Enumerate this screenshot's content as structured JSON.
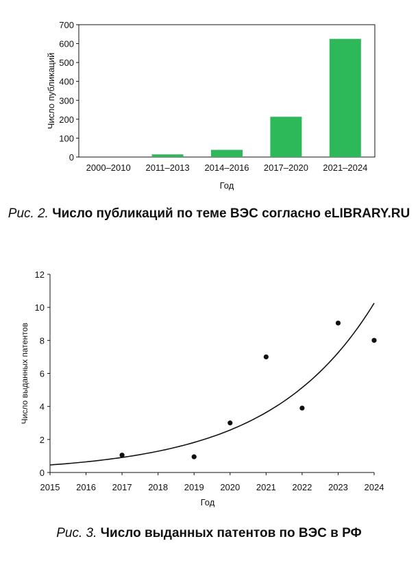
{
  "chart_data": [
    {
      "type": "bar",
      "categories": [
        "2000–2010",
        "2011–2013",
        "2014–2016",
        "2017–2020",
        "2021–2024"
      ],
      "values": [
        0,
        14,
        38,
        213,
        625
      ],
      "xlabel": "Год",
      "ylabel": "Число публикаций",
      "ylim": [
        0,
        700
      ],
      "yticks": [
        0,
        100,
        200,
        300,
        400,
        500,
        600,
        700
      ],
      "bar_color": "#2db85a",
      "grid": false
    },
    {
      "type": "scatter",
      "series": [
        {
          "x": [
            2017,
            2019,
            2020,
            2021,
            2022,
            2023,
            2024
          ],
          "y": [
            1.05,
            0.95,
            3.0,
            7.0,
            3.9,
            9.05,
            8.0
          ]
        }
      ],
      "trendline": "exponential",
      "xlabel": "Год",
      "ylabel": "Число выданных патентов",
      "xlim": [
        2015,
        2024
      ],
      "ylim": [
        0,
        12
      ],
      "xticks": [
        2015,
        2016,
        2017,
        2018,
        2019,
        2020,
        2021,
        2022,
        2023,
        2024
      ],
      "yticks": [
        0,
        2,
        4,
        6,
        8,
        10,
        12
      ],
      "grid": false
    }
  ],
  "captions": {
    "fig2_prefix": "Рис. 2.",
    "fig2_text": "Число публикаций по теме ВЭС согласно eLIBRARY.RU",
    "fig3_prefix": "Рис. 3.",
    "fig3_text": "Число выданных патентов по ВЭС в РФ"
  }
}
